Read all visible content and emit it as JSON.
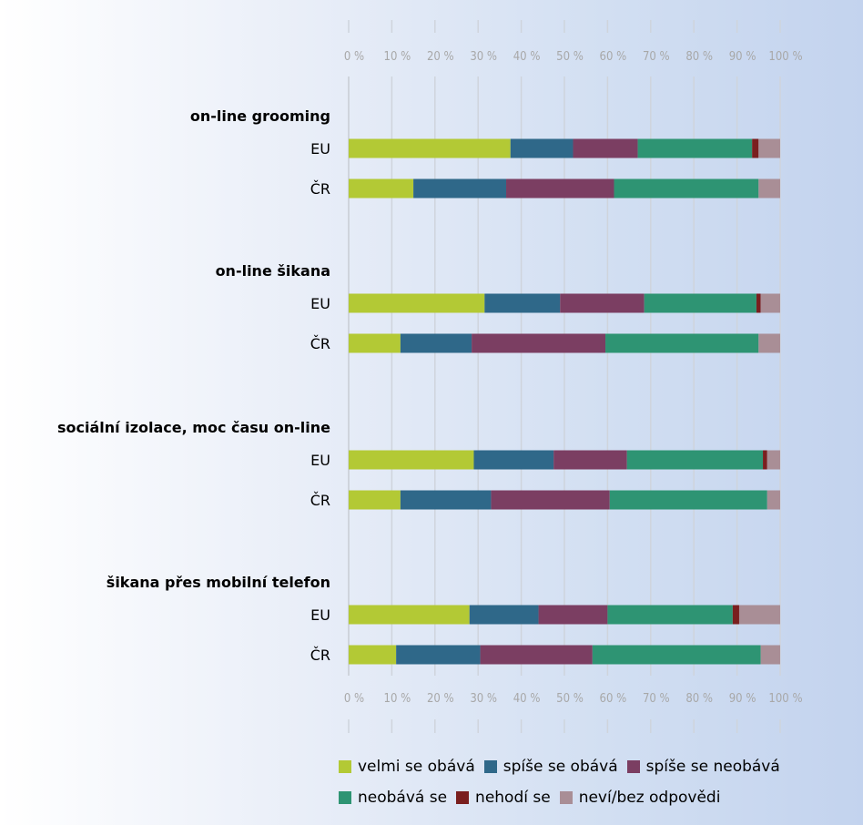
{
  "chart_data": {
    "type": "bar",
    "orientation": "horizontal",
    "stacked": true,
    "xlim": [
      0,
      100
    ],
    "x_ticks": [
      "0 %",
      "10 %",
      "20 %",
      "30 %",
      "40 %",
      "50 %",
      "60 %",
      "70 %",
      "80 %",
      "90 %",
      "100 %"
    ],
    "grid": true,
    "legend_position": "bottom",
    "series_names": [
      "velmi se obává",
      "spíše se obává",
      "spíše se neobává",
      "neobává se",
      "nehodí se",
      "neví/bez odpovědi"
    ],
    "colors": [
      "#b3c935",
      "#2f6889",
      "#7b3e62",
      "#2e9473",
      "#7a1f1f",
      "#a98e96"
    ],
    "groups": [
      {
        "label": "on-line grooming",
        "rows": [
          {
            "label": "EU",
            "values": [
              37.5,
              14.5,
              15,
              26.5,
              1.5,
              5
            ]
          },
          {
            "label": "ČR",
            "values": [
              15,
              21.5,
              25,
              33.5,
              0,
              5
            ]
          }
        ]
      },
      {
        "label": "on-line šikana",
        "rows": [
          {
            "label": "EU",
            "values": [
              31.5,
              17.5,
              19.5,
              26,
              1,
              4.5
            ]
          },
          {
            "label": "ČR",
            "values": [
              12,
              16.5,
              31,
              35.5,
              0,
              5
            ]
          }
        ]
      },
      {
        "label": "sociální izolace, moc času on-line",
        "rows": [
          {
            "label": "EU",
            "values": [
              29,
              18.5,
              17,
              31.5,
              1,
              3
            ]
          },
          {
            "label": "ČR",
            "values": [
              12,
              21,
              27.5,
              36.5,
              0,
              3
            ]
          }
        ]
      },
      {
        "label": "šikana přes mobilní telefon",
        "rows": [
          {
            "label": "EU",
            "values": [
              28,
              16,
              16,
              29,
              1.5,
              9.5
            ]
          },
          {
            "label": "ČR",
            "values": [
              11,
              19.5,
              26,
              39,
              0,
              4.5
            ]
          }
        ]
      }
    ]
  }
}
